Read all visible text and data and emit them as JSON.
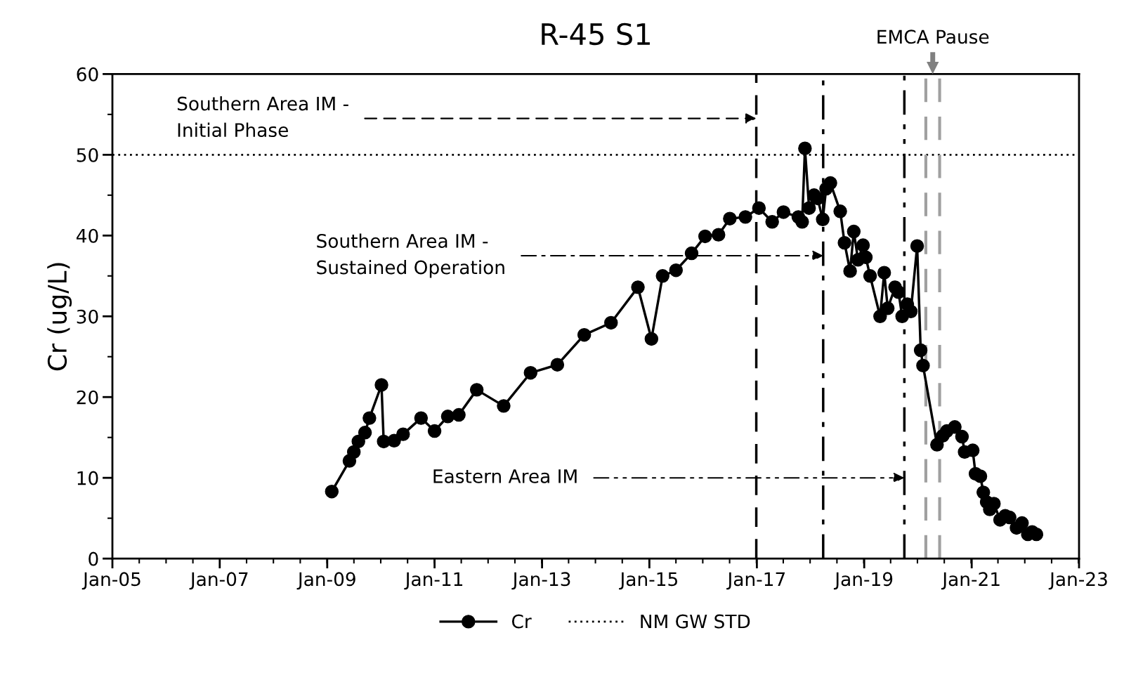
{
  "chart_data": {
    "type": "line",
    "title": "R-45 S1",
    "ylabel": "Cr (ug/L)",
    "series": [
      {
        "name": "Cr",
        "color": "#000000",
        "marker": "circle",
        "line_style": "solid",
        "x": [
          "2009-02-01",
          "2009-06-01",
          "2009-07-01",
          "2009-08-01",
          "2009-09-15",
          "2009-10-15",
          "2010-01-05",
          "2010-01-20",
          "2010-04-01",
          "2010-06-01",
          "2010-10-01",
          "2011-01-01",
          "2011-04-01",
          "2011-06-15",
          "2011-10-15",
          "2012-04-15",
          "2012-10-15",
          "2013-04-15",
          "2013-10-15",
          "2014-04-15",
          "2014-10-15",
          "2015-01-15",
          "2015-04-01",
          "2015-07-01",
          "2015-10-15",
          "2016-01-15",
          "2016-04-15",
          "2016-07-01",
          "2016-10-15",
          "2017-01-15",
          "2017-04-15",
          "2017-07-01",
          "2017-10-10",
          "2017-11-05",
          "2017-11-24",
          "2017-12-22",
          "2018-01-25",
          "2018-02-18",
          "2018-03-25",
          "2018-04-17",
          "2018-05-16",
          "2018-07-22",
          "2018-08-20",
          "2018-09-27",
          "2018-10-22",
          "2018-11-20",
          "2018-12-24",
          "2019-01-12",
          "2019-02-10",
          "2019-04-19",
          "2019-05-17",
          "2019-06-10",
          "2019-07-30",
          "2019-08-22",
          "2019-09-16",
          "2019-10-21",
          "2019-11-14",
          "2019-12-27",
          "2020-01-20",
          "2020-02-05",
          "2020-05-10",
          "2020-06-18",
          "2020-07-16",
          "2020-09-08",
          "2020-10-27",
          "2020-11-14",
          "2021-01-08",
          "2021-01-27",
          "2021-03-01",
          "2021-03-21",
          "2021-04-13",
          "2021-05-04",
          "2021-06-01",
          "2021-07-13",
          "2021-08-17",
          "2021-09-16",
          "2021-11-02",
          "2021-12-09",
          "2022-01-18",
          "2022-02-16",
          "2022-03-17"
        ],
        "values": [
          8.3,
          12.1,
          13.2,
          14.5,
          15.6,
          17.4,
          21.5,
          14.5,
          14.6,
          15.4,
          17.4,
          15.8,
          17.6,
          17.8,
          20.9,
          18.9,
          23.0,
          24.0,
          27.7,
          29.2,
          33.6,
          27.2,
          35.0,
          35.7,
          37.8,
          39.9,
          40.1,
          42.1,
          42.3,
          43.4,
          41.7,
          42.9,
          42.3,
          41.7,
          50.8,
          43.4,
          45.0,
          44.6,
          42.0,
          45.8,
          46.5,
          43.0,
          39.1,
          35.6,
          40.5,
          37.0,
          38.8,
          37.3,
          35.0,
          30.0,
          35.4,
          31.0,
          33.6,
          33.0,
          30.0,
          31.5,
          30.6,
          38.7,
          25.8,
          23.9,
          14.1,
          15.2,
          15.8,
          16.3,
          15.1,
          13.2,
          13.4,
          10.5,
          10.2,
          8.2,
          7.0,
          6.1,
          6.8,
          4.8,
          5.3,
          5.1,
          3.8,
          4.4,
          3.0,
          3.3,
          3.0
        ]
      }
    ],
    "xlim": [
      "2005-01-01",
      "2023-01-01"
    ],
    "xticks": [
      {
        "value": "2005-01-01",
        "label": "Jan-05"
      },
      {
        "value": "2007-01-01",
        "label": "Jan-07"
      },
      {
        "value": "2009-01-01",
        "label": "Jan-09"
      },
      {
        "value": "2011-01-01",
        "label": "Jan-11"
      },
      {
        "value": "2013-01-01",
        "label": "Jan-13"
      },
      {
        "value": "2015-01-01",
        "label": "Jan-15"
      },
      {
        "value": "2017-01-01",
        "label": "Jan-17"
      },
      {
        "value": "2019-01-01",
        "label": "Jan-19"
      },
      {
        "value": "2021-01-01",
        "label": "Jan-21"
      },
      {
        "value": "2023-01-01",
        "label": "Jan-23"
      }
    ],
    "ylim": [
      0,
      60
    ],
    "yticks": [
      0,
      10,
      20,
      30,
      40,
      50,
      60
    ],
    "ref_lines": [
      {
        "axis": "y",
        "value": 50,
        "label": "NM GW STD",
        "color": "#000000",
        "line_style": "dotted"
      },
      {
        "axis": "x",
        "value": "2016-12-28",
        "color": "#000000",
        "line_style": "dashed"
      },
      {
        "axis": "x",
        "value": "2018-03-28",
        "color": "#000000",
        "line_style": "dashdot"
      },
      {
        "axis": "x",
        "value": "2019-10-01",
        "color": "#000000",
        "line_style": "dashdotdot"
      },
      {
        "axis": "x",
        "value": "2020-02-24",
        "color": "#a0a0a0",
        "line_style": "dashed"
      },
      {
        "axis": "x",
        "value": "2020-05-28",
        "color": "#a0a0a0",
        "line_style": "dashed"
      }
    ],
    "annotations": [
      {
        "text": "Southern Area IM -\nInitial Phase",
        "x": "2016-12-28",
        "y": 54.5
      },
      {
        "text": "Southern Area IM -\nSustained Operation",
        "x": "2018-03-28",
        "y": 37.5
      },
      {
        "text": "Eastern Area IM",
        "x": "2019-10-01",
        "y": 10
      },
      "EMCA Pause"
    ],
    "grid": false,
    "legend": "bottom"
  }
}
